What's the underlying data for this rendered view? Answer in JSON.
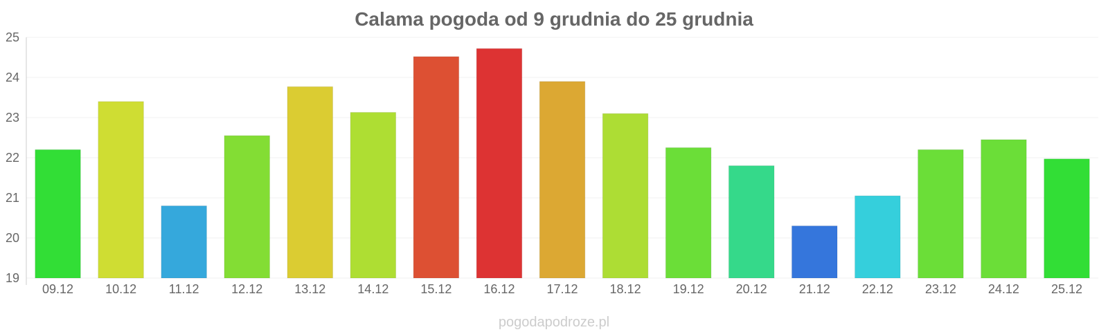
{
  "chart_data": {
    "type": "bar",
    "title": "Calama pogoda od 9 grudnia do 25 grudnia",
    "categories": [
      "09.12",
      "10.12",
      "11.12",
      "12.12",
      "13.12",
      "14.12",
      "15.12",
      "16.12",
      "17.12",
      "18.12",
      "19.12",
      "20.12",
      "21.12",
      "22.12",
      "23.12",
      "24.12",
      "25.12"
    ],
    "values": [
      22.2,
      23.4,
      20.8,
      22.55,
      23.77,
      23.13,
      24.52,
      24.72,
      23.9,
      23.1,
      22.25,
      21.8,
      20.3,
      21.05,
      22.2,
      22.45,
      21.97
    ],
    "colors": [
      "#32de36",
      "#cfdd33",
      "#35a8dc",
      "#83dd34",
      "#dbcc32",
      "#aede33",
      "#dd5033",
      "#dd3333",
      "#dca833",
      "#addd34",
      "#6bde38",
      "#35d98a",
      "#3576dc",
      "#35cfdc",
      "#6bde38",
      "#6bde38",
      "#32de36"
    ],
    "ylim": [
      19,
      25
    ],
    "yticks": [
      19,
      20,
      21,
      22,
      23,
      24,
      25
    ],
    "grid": true,
    "legend": "none"
  },
  "watermark": "pogodapodroze.pl"
}
